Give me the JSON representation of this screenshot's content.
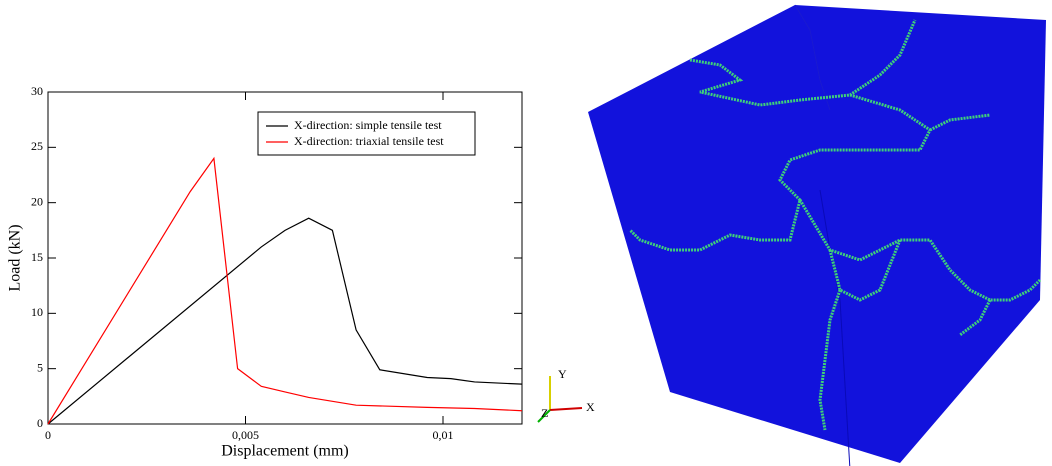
{
  "chart_data": {
    "type": "line",
    "x_label": "Displacement (mm)",
    "y_label": "Load (kN)",
    "xlim": [
      0,
      0.012
    ],
    "ylim": [
      0,
      30
    ],
    "xticks": [
      0,
      {
        "value": 0.005,
        "label": "0,005"
      },
      {
        "value": 0.01,
        "label": "0,01"
      }
    ],
    "yticks": [
      0,
      5,
      10,
      15,
      20,
      25,
      30
    ],
    "legend": "upper right",
    "series": [
      {
        "name": "X-direction: simple tensile test",
        "color": "#000000",
        "x": [
          0,
          0.0054,
          0.006,
          0.0066,
          0.0072,
          0.0078,
          0.0084,
          0.0096,
          0.0102,
          0.0108,
          0.012
        ],
        "values": [
          0,
          16,
          17.5,
          18.6,
          17.5,
          8.5,
          4.9,
          4.2,
          4.1,
          3.8,
          3.6
        ]
      },
      {
        "name": "X-direction: triaxial tensile test",
        "color": "#ff0000",
        "x": [
          0,
          0.0036,
          0.0042,
          0.0048,
          0.0054,
          0.006,
          0.0066,
          0.0078,
          0.0096,
          0.0108,
          0.012
        ],
        "values": [
          0,
          21,
          24,
          5,
          3.4,
          2.9,
          2.4,
          1.7,
          1.5,
          1.4,
          1.2
        ]
      }
    ]
  },
  "render": {
    "triad": {
      "y": "Y",
      "z": "Z",
      "x": "X"
    }
  }
}
